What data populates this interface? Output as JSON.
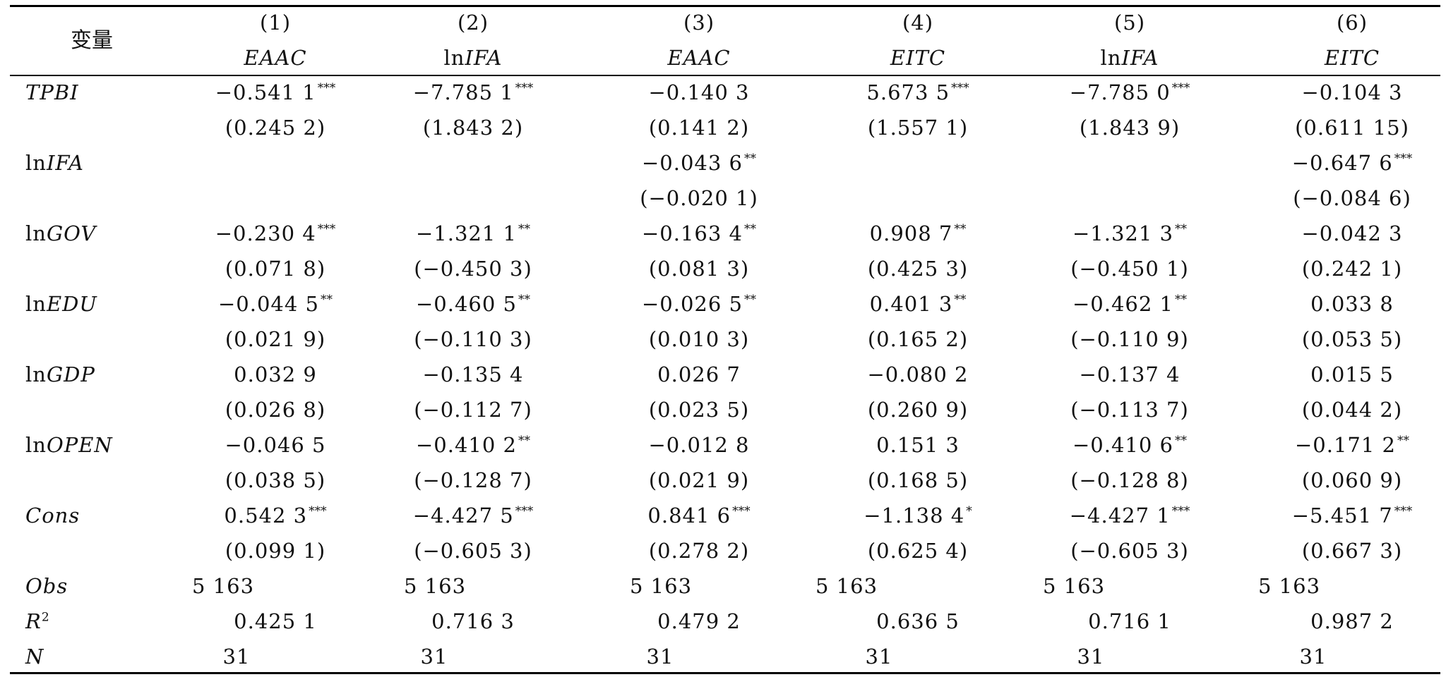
{
  "table": {
    "variable_header": "变量",
    "columns": [
      {
        "number": "(1)",
        "dep_prefix": "",
        "dep_var": "EAAC"
      },
      {
        "number": "(2)",
        "dep_prefix": "ln",
        "dep_var": "IFA"
      },
      {
        "number": "(3)",
        "dep_prefix": "",
        "dep_var": "EAAC"
      },
      {
        "number": "(4)",
        "dep_prefix": "",
        "dep_var": "EITC"
      },
      {
        "number": "(5)",
        "dep_prefix": "ln",
        "dep_var": "IFA"
      },
      {
        "number": "(6)",
        "dep_prefix": "",
        "dep_var": "EITC"
      }
    ],
    "rows": [
      {
        "prefix": "",
        "name": "TPBI",
        "coef": [
          {
            "v": "−0.541 1",
            "s": "***"
          },
          {
            "v": "−7.785 1",
            "s": "***"
          },
          {
            "v": "−0.140 3",
            "s": ""
          },
          {
            "v": "5.673 5",
            "s": "***"
          },
          {
            "v": "−7.785 0",
            "s": "***"
          },
          {
            "v": "−0.104 3",
            "s": ""
          }
        ],
        "se": [
          "(0.245 2)",
          "(1.843 2)",
          "(0.141 2)",
          "(1.557 1)",
          "(1.843 9)",
          "(0.611 15)"
        ]
      },
      {
        "prefix": "ln",
        "name": "IFA",
        "coef": [
          {
            "v": "",
            "s": ""
          },
          {
            "v": "",
            "s": ""
          },
          {
            "v": "−0.043 6",
            "s": "**"
          },
          {
            "v": "",
            "s": ""
          },
          {
            "v": "",
            "s": ""
          },
          {
            "v": "−0.647 6",
            "s": "***"
          }
        ],
        "se": [
          "",
          "",
          "(−0.020 1)",
          "",
          "",
          "(−0.084 6)"
        ]
      },
      {
        "prefix": "ln",
        "name": "GOV",
        "coef": [
          {
            "v": "−0.230 4",
            "s": "***"
          },
          {
            "v": "−1.321 1",
            "s": "**"
          },
          {
            "v": "−0.163 4",
            "s": "**"
          },
          {
            "v": "0.908 7",
            "s": "**"
          },
          {
            "v": "−1.321 3",
            "s": "**"
          },
          {
            "v": "−0.042 3",
            "s": ""
          }
        ],
        "se": [
          "(0.071 8)",
          "(−0.450 3)",
          "(0.081 3)",
          "(0.425 3)",
          "(−0.450 1)",
          "(0.242 1)"
        ]
      },
      {
        "prefix": "ln",
        "name": "EDU",
        "coef": [
          {
            "v": "−0.044 5",
            "s": "**"
          },
          {
            "v": "−0.460 5",
            "s": "**"
          },
          {
            "v": "−0.026 5",
            "s": "**"
          },
          {
            "v": "0.401 3",
            "s": "**"
          },
          {
            "v": "−0.462 1",
            "s": "**"
          },
          {
            "v": "0.033 8",
            "s": ""
          }
        ],
        "se": [
          "(0.021 9)",
          "(−0.110 3)",
          "(0.010 3)",
          "(0.165 2)",
          "(−0.110 9)",
          "(0.053 5)"
        ]
      },
      {
        "prefix": "ln",
        "name": "GDP",
        "coef": [
          {
            "v": "0.032 9",
            "s": ""
          },
          {
            "v": "−0.135 4",
            "s": ""
          },
          {
            "v": "0.026 7",
            "s": ""
          },
          {
            "v": "−0.080 2",
            "s": ""
          },
          {
            "v": "−0.137 4",
            "s": ""
          },
          {
            "v": "0.015 5",
            "s": ""
          }
        ],
        "se": [
          "(0.026 8)",
          "(−0.112 7)",
          "(0.023 5)",
          "(0.260 9)",
          "(−0.113 7)",
          "(0.044 2)"
        ]
      },
      {
        "prefix": "ln",
        "name": "OPEN",
        "coef": [
          {
            "v": "−0.046 5",
            "s": ""
          },
          {
            "v": "−0.410 2",
            "s": "**"
          },
          {
            "v": "−0.012 8",
            "s": ""
          },
          {
            "v": "0.151 3",
            "s": ""
          },
          {
            "v": "−0.410 6",
            "s": "**"
          },
          {
            "v": "−0.171 2",
            "s": "**"
          }
        ],
        "se": [
          "(0.038 5)",
          "(−0.128 7)",
          "(0.021 9)",
          "(0.168 5)",
          "(−0.128 8)",
          "(0.060 9)"
        ]
      },
      {
        "prefix": "",
        "name": "Cons",
        "coef": [
          {
            "v": "0.542 3",
            "s": "***"
          },
          {
            "v": "−4.427 5",
            "s": "***"
          },
          {
            "v": "0.841 6",
            "s": "***"
          },
          {
            "v": "−1.138 4",
            "s": "*"
          },
          {
            "v": "−4.427 1",
            "s": "***"
          },
          {
            "v": "−5.451 7",
            "s": "***"
          }
        ],
        "se": [
          "(0.099 1)",
          "(−0.605 3)",
          "(0.278 2)",
          "(0.625 4)",
          "(−0.605 3)",
          "(0.667 3)"
        ]
      }
    ],
    "stats": [
      {
        "name": "Obs",
        "sup": "",
        "values": [
          "5 163",
          "5 163",
          "5 163",
          "5 163",
          "5 163",
          "5 163"
        ]
      },
      {
        "name": "R",
        "sup": "2",
        "values": [
          "0.425 1",
          "0.716 3",
          "0.479 2",
          "0.636 5",
          "0.716 1",
          "0.987 2"
        ]
      },
      {
        "name": "N",
        "sup": "",
        "values": [
          "31",
          "31",
          "31",
          "31",
          "31",
          "31"
        ]
      }
    ]
  }
}
